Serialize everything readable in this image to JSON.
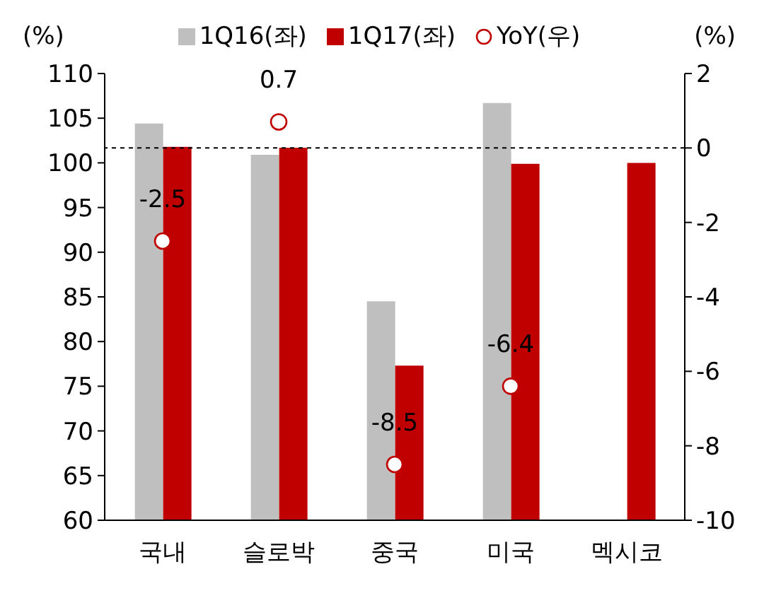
{
  "chart_data": {
    "type": "bar",
    "ylabel": "(%)",
    "y2label": "(%)",
    "categories": [
      "국내",
      "슬로박",
      "중국",
      "미국",
      "멕시코"
    ],
    "series": [
      {
        "name": "1Q16(좌)",
        "color": "#bfbfbf",
        "values": [
          104.4,
          100.9,
          84.5,
          106.7,
          null
        ]
      },
      {
        "name": "1Q17(좌)",
        "color": "#c00000",
        "values": [
          101.8,
          101.7,
          77.3,
          99.9,
          100.0
        ]
      },
      {
        "name": "YoY(우)",
        "type": "scatter",
        "axis": "y2",
        "color": "#c00000",
        "marker": "circle",
        "values": [
          -2.5,
          0.7,
          -8.5,
          -6.4,
          null
        ],
        "value_labels": [
          "-2.5",
          "0.7",
          "-8.5",
          "-6.4",
          null
        ]
      }
    ],
    "ylim": [
      60,
      110
    ],
    "yticks": [
      60,
      65,
      70,
      75,
      80,
      85,
      90,
      95,
      100,
      105,
      110
    ],
    "y2lim": [
      -10,
      2
    ],
    "y2ticks": [
      -10,
      -8,
      -6,
      -4,
      -2,
      0,
      2
    ],
    "ref_lines": [
      {
        "axis": "y2",
        "value": 0,
        "line_style": "dotted",
        "color": "#000000"
      }
    ],
    "legend": "top"
  }
}
